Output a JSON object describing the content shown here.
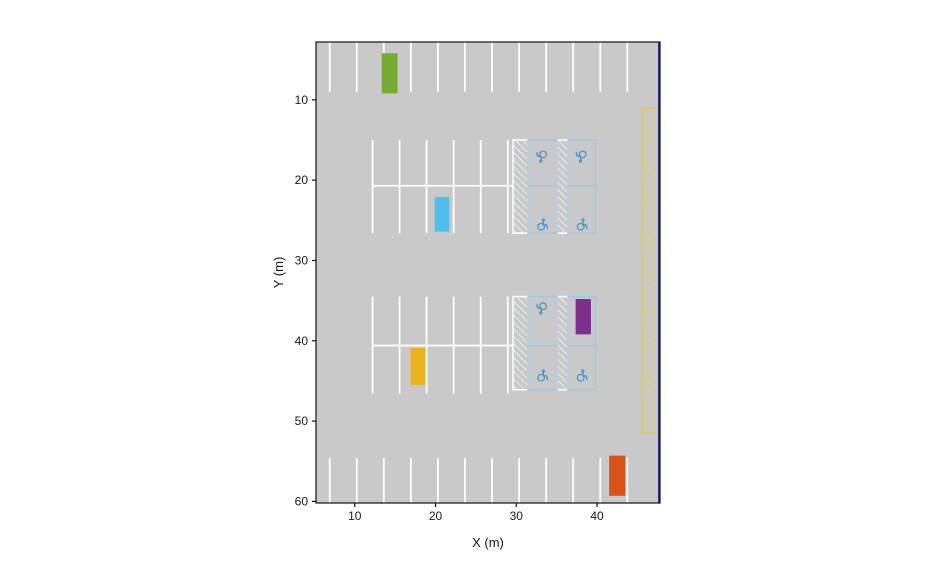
{
  "chart_data": {
    "type": "other",
    "subtype": "parking_lot_spatial_layout",
    "title": "",
    "xlabel": "X (m)",
    "ylabel": "Y (m)",
    "units": "meters",
    "x_ticks": [
      10,
      20,
      30,
      40
    ],
    "y_ticks": [
      10,
      20,
      30,
      40,
      50,
      60
    ],
    "x_range": [
      5.2,
      47.8
    ],
    "y_range": [
      2.8,
      60.2
    ],
    "y_axis_inverted": true,
    "grid": false,
    "colors": {
      "surface": "#c9c9c9",
      "stall_line": "#ffffff",
      "accessible_stall": "#9ec9e2",
      "icon": "#4798cf",
      "boundary": "#2b3190",
      "no_parking_zone": "#e8c94e",
      "frame": "#111111"
    },
    "lot": {
      "stall_rows": [
        {
          "name": "top",
          "xs": [
            6.9,
            10.25,
            13.6,
            16.95,
            20.3,
            23.65,
            27.0,
            30.35,
            33.7,
            37.05,
            40.4,
            43.75
          ],
          "y1": 2.8,
          "y2": 9.0
        },
        {
          "name": "bottom",
          "xs": [
            6.9,
            10.25,
            13.6,
            16.95,
            20.3,
            23.65,
            27.0,
            30.35,
            33.7,
            37.05,
            40.4,
            43.75
          ],
          "y1": 54.6,
          "y2": 60.2
        },
        {
          "name": "mid-upper",
          "xs": [
            12.2,
            15.55,
            18.9,
            22.25,
            25.6,
            28.95
          ],
          "y1": 15.0,
          "y2": 26.6
        },
        {
          "name": "mid-lower",
          "xs": [
            12.2,
            15.55,
            18.9,
            22.25,
            25.6,
            28.95
          ],
          "y1": 34.5,
          "y2": 46.6
        }
      ],
      "spines": [
        {
          "x1": 12.2,
          "x2": 29.6,
          "y": 20.7
        },
        {
          "x1": 12.2,
          "x2": 29.6,
          "y": 40.6
        }
      ],
      "access_aisles": [
        {
          "x": 29.6,
          "y": 15.0,
          "w": 1.85,
          "h": 11.6
        },
        {
          "x": 35.05,
          "y": 15.0,
          "w": 1.35,
          "h": 11.6
        },
        {
          "x": 29.6,
          "y": 34.5,
          "w": 1.85,
          "h": 11.6
        },
        {
          "x": 35.05,
          "y": 34.5,
          "w": 1.35,
          "h": 11.6
        }
      ],
      "accessible_stalls": [
        {
          "x": 31.45,
          "y": 15.0,
          "w": 3.6,
          "h": 5.7
        },
        {
          "x": 31.45,
          "y": 20.7,
          "w": 3.6,
          "h": 5.9
        },
        {
          "x": 36.4,
          "y": 15.0,
          "w": 3.4,
          "h": 5.7
        },
        {
          "x": 36.4,
          "y": 20.7,
          "w": 3.4,
          "h": 5.9
        },
        {
          "x": 31.45,
          "y": 34.5,
          "w": 3.6,
          "h": 6.1
        },
        {
          "x": 31.45,
          "y": 40.6,
          "w": 3.6,
          "h": 5.5
        },
        {
          "x": 36.4,
          "y": 34.5,
          "w": 3.4,
          "h": 6.1
        },
        {
          "x": 36.4,
          "y": 40.6,
          "w": 3.4,
          "h": 5.5
        }
      ],
      "accessible_icons": [
        {
          "x": 33.2,
          "y": 17.1,
          "rot": 180
        },
        {
          "x": 38.1,
          "y": 17.1,
          "rot": 180
        },
        {
          "x": 33.2,
          "y": 25.5,
          "rot": 0
        },
        {
          "x": 38.1,
          "y": 25.5,
          "rot": 0
        },
        {
          "x": 33.2,
          "y": 36.0,
          "rot": 180
        },
        {
          "x": 33.2,
          "y": 44.3,
          "rot": 0
        },
        {
          "x": 38.1,
          "y": 44.3,
          "rot": 0
        }
      ],
      "no_parking_zone": {
        "x": 45.55,
        "y": 11.0,
        "w": 2.05,
        "h": 40.5
      },
      "boundary_line": {
        "x": 47.65,
        "y1": 2.8,
        "y2": 60.2
      },
      "cars": [
        {
          "name": "green",
          "color": "#77ac30",
          "x": 13.35,
          "y": 4.2,
          "w": 1.95,
          "h": 5.0
        },
        {
          "name": "cyan",
          "color": "#4dbeee",
          "x": 19.9,
          "y": 22.1,
          "w": 1.8,
          "h": 4.3
        },
        {
          "name": "purple",
          "color": "#7e2f8e",
          "x": 37.35,
          "y": 34.8,
          "w": 1.9,
          "h": 4.4
        },
        {
          "name": "yellow",
          "color": "#edb120",
          "x": 16.9,
          "y": 40.9,
          "w": 1.8,
          "h": 4.6
        },
        {
          "name": "orange",
          "color": "#d95319",
          "x": 41.5,
          "y": 54.3,
          "w": 2.0,
          "h": 5.0
        }
      ]
    }
  }
}
